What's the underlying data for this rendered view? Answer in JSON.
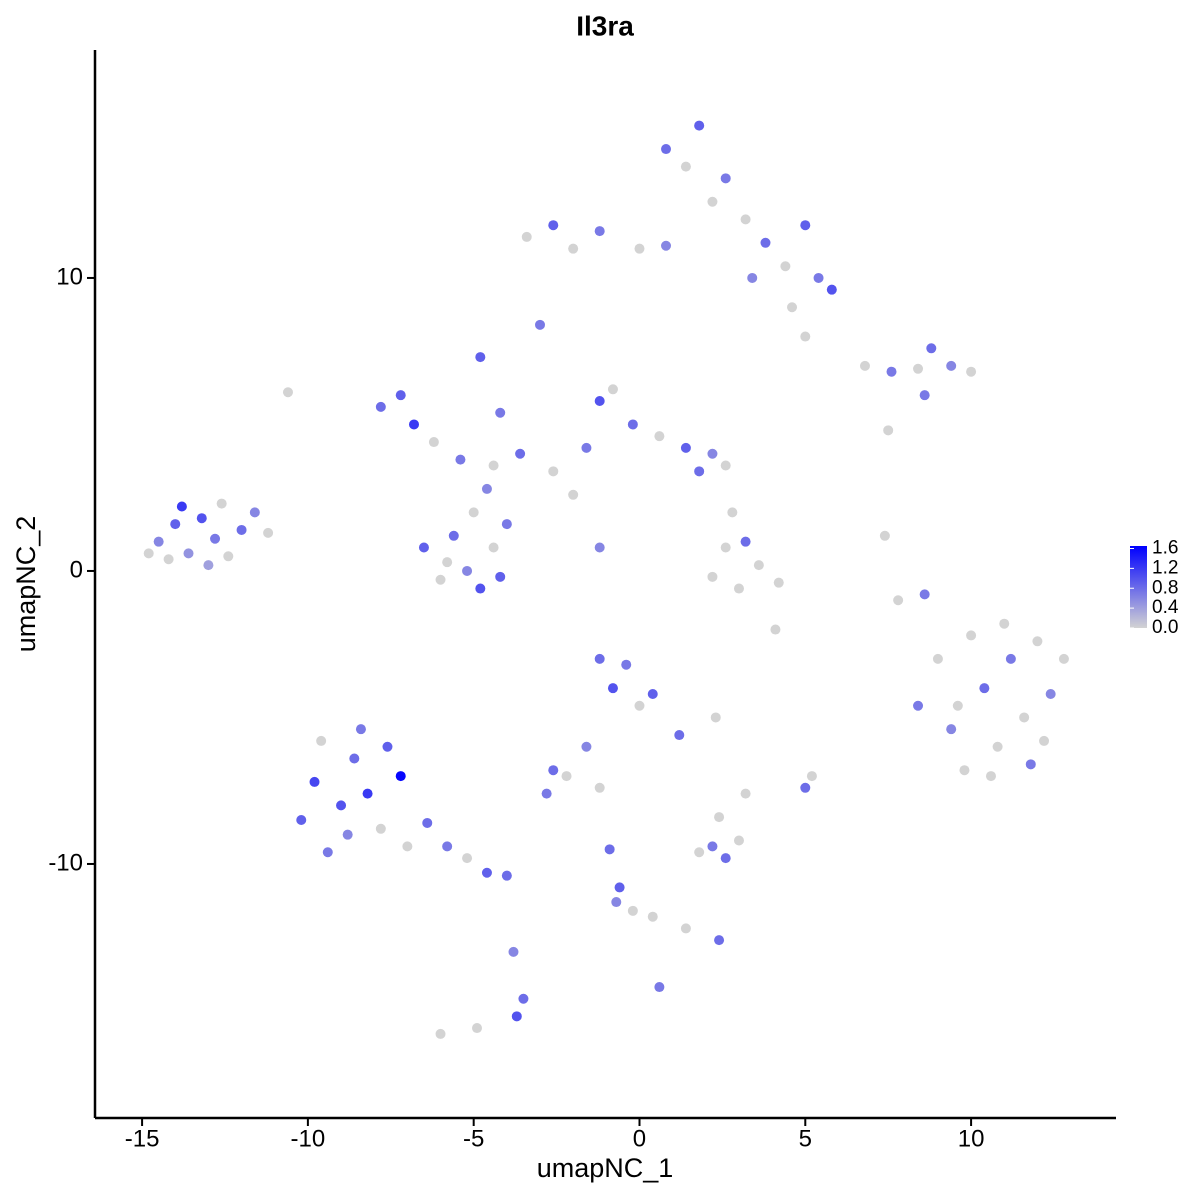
{
  "chart_data": {
    "type": "scatter",
    "title": "Il3ra",
    "x_label": "umapNC_1",
    "y_label": "umapNC_2",
    "xlim": [
      -16.42,
      14.37
    ],
    "ylim": [
      -18.67,
      17.78
    ],
    "xticks": [
      -15,
      -10,
      -5,
      0,
      5,
      10
    ],
    "yticks": [
      -10,
      0,
      10
    ],
    "grid": false,
    "color_low": "#d3d3d3",
    "color_high": "#0000ff",
    "colorlim": [
      0,
      1.65
    ],
    "colorbar_ticks": [
      {
        "value": 0,
        "label": "0.0"
      },
      {
        "value": 0.4,
        "label": "0.4"
      },
      {
        "value": 0.8,
        "label": "0.8"
      },
      {
        "value": 1.2,
        "label": "1.2"
      },
      {
        "value": 1.6,
        "label": "1.6"
      }
    ],
    "points": [
      {
        "x": -14.5,
        "y": 1.0,
        "expression": 0.6
      },
      {
        "x": -14.0,
        "y": 1.6,
        "expression": 0.9
      },
      {
        "x": -13.6,
        "y": 0.6,
        "expression": 0.5
      },
      {
        "x": -13.2,
        "y": 1.8,
        "expression": 1.0
      },
      {
        "x": -12.8,
        "y": 1.1,
        "expression": 0.7
      },
      {
        "x": -12.4,
        "y": 0.5,
        "expression": 0
      },
      {
        "x": -13.0,
        "y": 0.2,
        "expression": 0.4
      },
      {
        "x": -14.2,
        "y": 0.4,
        "expression": 0
      },
      {
        "x": -12.0,
        "y": 1.4,
        "expression": 0.8
      },
      {
        "x": -11.6,
        "y": 2.0,
        "expression": 0.6
      },
      {
        "x": -11.2,
        "y": 1.3,
        "expression": 0
      },
      {
        "x": -13.8,
        "y": 2.2,
        "expression": 1.2
      },
      {
        "x": -12.6,
        "y": 2.3,
        "expression": 0
      },
      {
        "x": -14.8,
        "y": 0.6,
        "expression": 0
      },
      {
        "x": -10.2,
        "y": -8.5,
        "expression": 0.9
      },
      {
        "x": -9.8,
        "y": -7.2,
        "expression": 1.1
      },
      {
        "x": -9.4,
        "y": -9.6,
        "expression": 0.7
      },
      {
        "x": -9.0,
        "y": -8.0,
        "expression": 1.0
      },
      {
        "x": -8.6,
        "y": -6.4,
        "expression": 0.8
      },
      {
        "x": -8.2,
        "y": -7.6,
        "expression": 1.2
      },
      {
        "x": -8.8,
        "y": -9.0,
        "expression": 0.6
      },
      {
        "x": -7.8,
        "y": -8.8,
        "expression": 0
      },
      {
        "x": -7.6,
        "y": -6.0,
        "expression": 0.9
      },
      {
        "x": -7.2,
        "y": -7.0,
        "expression": 1.6
      },
      {
        "x": -7.0,
        "y": -9.4,
        "expression": 0
      },
      {
        "x": -6.4,
        "y": -8.6,
        "expression": 0.8
      },
      {
        "x": -5.8,
        "y": -9.4,
        "expression": 0.7
      },
      {
        "x": -5.2,
        "y": -9.8,
        "expression": 0
      },
      {
        "x": -4.6,
        "y": -10.3,
        "expression": 0.9
      },
      {
        "x": -4.0,
        "y": -10.4,
        "expression": 0.8
      },
      {
        "x": -9.6,
        "y": -5.8,
        "expression": 0
      },
      {
        "x": -8.4,
        "y": -5.4,
        "expression": 0.7
      },
      {
        "x": -3.8,
        "y": -13.0,
        "expression": 0.6
      },
      {
        "x": -3.5,
        "y": -14.6,
        "expression": 0.8
      },
      {
        "x": -3.7,
        "y": -15.2,
        "expression": 1.0
      },
      {
        "x": -6.0,
        "y": -15.8,
        "expression": 0
      },
      {
        "x": -4.9,
        "y": -15.6,
        "expression": 0
      },
      {
        "x": -6.5,
        "y": 0.8,
        "expression": 0.9
      },
      {
        "x": -6.0,
        "y": -0.3,
        "expression": 0
      },
      {
        "x": -5.6,
        "y": 1.2,
        "expression": 0.8
      },
      {
        "x": -5.2,
        "y": 0.0,
        "expression": 0.6
      },
      {
        "x": -4.8,
        "y": -0.6,
        "expression": 1.0
      },
      {
        "x": -4.4,
        "y": 0.8,
        "expression": 0
      },
      {
        "x": -4.0,
        "y": 1.6,
        "expression": 0.7
      },
      {
        "x": -5.0,
        "y": 2.0,
        "expression": 0
      },
      {
        "x": -4.2,
        "y": -0.2,
        "expression": 0.9
      },
      {
        "x": -5.8,
        "y": 0.3,
        "expression": 0
      },
      {
        "x": -4.6,
        "y": 2.8,
        "expression": 0.6
      },
      {
        "x": -7.8,
        "y": 5.6,
        "expression": 0.8
      },
      {
        "x": -7.2,
        "y": 6.0,
        "expression": 0.9
      },
      {
        "x": -6.8,
        "y": 5.0,
        "expression": 1.2
      },
      {
        "x": -6.2,
        "y": 4.4,
        "expression": 0
      },
      {
        "x": -5.4,
        "y": 3.8,
        "expression": 0.7
      },
      {
        "x": -4.4,
        "y": 3.6,
        "expression": 0
      },
      {
        "x": -4.8,
        "y": 7.3,
        "expression": 0.9
      },
      {
        "x": -4.2,
        "y": 5.4,
        "expression": 0.7
      },
      {
        "x": -3.6,
        "y": 4.0,
        "expression": 0.8
      },
      {
        "x": -2.6,
        "y": 3.4,
        "expression": 0
      },
      {
        "x": -1.6,
        "y": 4.2,
        "expression": 0.7
      },
      {
        "x": -1.2,
        "y": 5.8,
        "expression": 1.0
      },
      {
        "x": -0.8,
        "y": 6.2,
        "expression": 0
      },
      {
        "x": -0.2,
        "y": 5.0,
        "expression": 0.8
      },
      {
        "x": 0.6,
        "y": 4.6,
        "expression": 0
      },
      {
        "x": 1.4,
        "y": 4.2,
        "expression": 0.9
      },
      {
        "x": 2.2,
        "y": 4.0,
        "expression": 0.6
      },
      {
        "x": 2.6,
        "y": 3.6,
        "expression": 0
      },
      {
        "x": 1.8,
        "y": 3.4,
        "expression": 0.8
      },
      {
        "x": -2.0,
        "y": 2.6,
        "expression": 0
      },
      {
        "x": -1.2,
        "y": 0.8,
        "expression": 0.6
      },
      {
        "x": -3.0,
        "y": 8.4,
        "expression": 0.7
      },
      {
        "x": -10.6,
        "y": 6.1,
        "expression": 0
      },
      {
        "x": -3.4,
        "y": 11.4,
        "expression": 0
      },
      {
        "x": -2.6,
        "y": 11.8,
        "expression": 0.9
      },
      {
        "x": -2.0,
        "y": 11.0,
        "expression": 0
      },
      {
        "x": -1.2,
        "y": 11.6,
        "expression": 0.7
      },
      {
        "x": 0.0,
        "y": 11.0,
        "expression": 0
      },
      {
        "x": 0.8,
        "y": 11.1,
        "expression": 0.6
      },
      {
        "x": 0.8,
        "y": 14.4,
        "expression": 0.8
      },
      {
        "x": 1.4,
        "y": 13.8,
        "expression": 0
      },
      {
        "x": 1.8,
        "y": 15.2,
        "expression": 0.9
      },
      {
        "x": 2.2,
        "y": 12.6,
        "expression": 0
      },
      {
        "x": 2.6,
        "y": 13.4,
        "expression": 0.7
      },
      {
        "x": 3.2,
        "y": 12.0,
        "expression": 0
      },
      {
        "x": 3.8,
        "y": 11.2,
        "expression": 0.8
      },
      {
        "x": 4.4,
        "y": 10.4,
        "expression": 0
      },
      {
        "x": 5.0,
        "y": 11.8,
        "expression": 0.9
      },
      {
        "x": 5.4,
        "y": 10.0,
        "expression": 0.7
      },
      {
        "x": 5.8,
        "y": 9.6,
        "expression": 1.0
      },
      {
        "x": 4.6,
        "y": 9.0,
        "expression": 0
      },
      {
        "x": 3.4,
        "y": 10.0,
        "expression": 0.6
      },
      {
        "x": 5.0,
        "y": 8.0,
        "expression": 0
      },
      {
        "x": 6.8,
        "y": 7.0,
        "expression": 0
      },
      {
        "x": 7.6,
        "y": 6.8,
        "expression": 0.7
      },
      {
        "x": 8.4,
        "y": 6.9,
        "expression": 0
      },
      {
        "x": 8.8,
        "y": 7.6,
        "expression": 0.8
      },
      {
        "x": 9.4,
        "y": 7.0,
        "expression": 0.6
      },
      {
        "x": 10.0,
        "y": 6.8,
        "expression": 0
      },
      {
        "x": 8.6,
        "y": 6.0,
        "expression": 0.7
      },
      {
        "x": 7.5,
        "y": 4.8,
        "expression": 0
      },
      {
        "x": 8.4,
        "y": -4.6,
        "expression": 0.7
      },
      {
        "x": 9.0,
        "y": -3.0,
        "expression": 0
      },
      {
        "x": 9.4,
        "y": -5.4,
        "expression": 0.6
      },
      {
        "x": 9.8,
        "y": -6.8,
        "expression": 0
      },
      {
        "x": 10.0,
        "y": -2.2,
        "expression": 0
      },
      {
        "x": 10.4,
        "y": -4.0,
        "expression": 0.8
      },
      {
        "x": 10.8,
        "y": -6.0,
        "expression": 0
      },
      {
        "x": 11.2,
        "y": -3.0,
        "expression": 0.7
      },
      {
        "x": 11.6,
        "y": -5.0,
        "expression": 0
      },
      {
        "x": 12.0,
        "y": -2.4,
        "expression": 0
      },
      {
        "x": 12.4,
        "y": -4.2,
        "expression": 0.6
      },
      {
        "x": 12.8,
        "y": -3.0,
        "expression": 0
      },
      {
        "x": 11.0,
        "y": -1.8,
        "expression": 0
      },
      {
        "x": 9.6,
        "y": -4.6,
        "expression": 0
      },
      {
        "x": 10.6,
        "y": -7.0,
        "expression": 0
      },
      {
        "x": 11.8,
        "y": -6.6,
        "expression": 0.7
      },
      {
        "x": 12.2,
        "y": -5.8,
        "expression": 0
      },
      {
        "x": 8.6,
        "y": -0.8,
        "expression": 0.7
      },
      {
        "x": 2.2,
        "y": -0.2,
        "expression": 0
      },
      {
        "x": 2.6,
        "y": 0.8,
        "expression": 0
      },
      {
        "x": 3.0,
        "y": -0.6,
        "expression": 0
      },
      {
        "x": 3.2,
        "y": 1.0,
        "expression": 0.8
      },
      {
        "x": 3.6,
        "y": 0.2,
        "expression": 0
      },
      {
        "x": 4.2,
        "y": -0.4,
        "expression": 0
      },
      {
        "x": 4.1,
        "y": -2.0,
        "expression": 0
      },
      {
        "x": 2.8,
        "y": 2.0,
        "expression": 0
      },
      {
        "x": 7.8,
        "y": -1.0,
        "expression": 0
      },
      {
        "x": 7.4,
        "y": 1.2,
        "expression": 0
      },
      {
        "x": -1.2,
        "y": -3.0,
        "expression": 0.8
      },
      {
        "x": -0.8,
        "y": -4.0,
        "expression": 1.0
      },
      {
        "x": -0.4,
        "y": -3.2,
        "expression": 0.7
      },
      {
        "x": 0.0,
        "y": -4.6,
        "expression": 0
      },
      {
        "x": 0.4,
        "y": -4.2,
        "expression": 0.9
      },
      {
        "x": 1.2,
        "y": -5.6,
        "expression": 0.8
      },
      {
        "x": -1.6,
        "y": -6.0,
        "expression": 0.6
      },
      {
        "x": -2.6,
        "y": -6.8,
        "expression": 0.8
      },
      {
        "x": -2.2,
        "y": -7.0,
        "expression": 0
      },
      {
        "x": -2.8,
        "y": -7.6,
        "expression": 0.7
      },
      {
        "x": -1.2,
        "y": -7.4,
        "expression": 0
      },
      {
        "x": 1.8,
        "y": -9.6,
        "expression": 0
      },
      {
        "x": 2.2,
        "y": -9.4,
        "expression": 0.7
      },
      {
        "x": 2.6,
        "y": -9.8,
        "expression": 0.8
      },
      {
        "x": 3.0,
        "y": -9.2,
        "expression": 0
      },
      {
        "x": 3.2,
        "y": -7.6,
        "expression": 0
      },
      {
        "x": 2.4,
        "y": -8.4,
        "expression": 0
      },
      {
        "x": 5.0,
        "y": -7.4,
        "expression": 0.8
      },
      {
        "x": 5.2,
        "y": -7.0,
        "expression": 0
      },
      {
        "x": 2.3,
        "y": -5.0,
        "expression": 0
      },
      {
        "x": -0.9,
        "y": -9.5,
        "expression": 0.8
      },
      {
        "x": -0.6,
        "y": -10.8,
        "expression": 0.9
      },
      {
        "x": -0.2,
        "y": -11.6,
        "expression": 0
      },
      {
        "x": 0.4,
        "y": -11.8,
        "expression": 0
      },
      {
        "x": 1.4,
        "y": -12.2,
        "expression": 0
      },
      {
        "x": 2.4,
        "y": -12.6,
        "expression": 0.8
      },
      {
        "x": 0.6,
        "y": -14.2,
        "expression": 0.7
      },
      {
        "x": -0.7,
        "y": -11.3,
        "expression": 0.6
      }
    ]
  }
}
